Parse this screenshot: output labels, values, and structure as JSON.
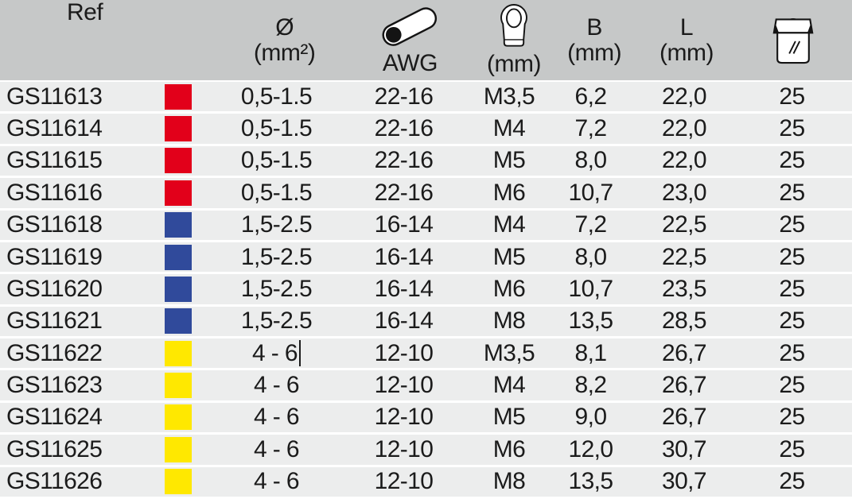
{
  "colors": {
    "header_bg": "#c6c8c8",
    "row_bg": "#eceded",
    "separator": "#ffffff",
    "text": "#1b1b1b",
    "red": "#e2001a",
    "blue": "#304a9b",
    "yellow": "#ffe800"
  },
  "table": {
    "column_keys": [
      "ref",
      "color",
      "diameter",
      "awg",
      "stud",
      "b",
      "l",
      "qty"
    ],
    "columns": [
      {
        "key": "ref",
        "label": "Ref"
      },
      {
        "key": "color",
        "label": ""
      },
      {
        "key": "diameter",
        "label": "Ø",
        "sublabel": "(mm²)"
      },
      {
        "key": "awg",
        "label": "AWG",
        "icon": "wire-icon"
      },
      {
        "key": "stud",
        "label": "(mm)",
        "icon": "ring-terminal-icon"
      },
      {
        "key": "b",
        "label": "B",
        "sublabel": "(mm)"
      },
      {
        "key": "l",
        "label": "L",
        "sublabel": "(mm)"
      },
      {
        "key": "qty",
        "label": "",
        "icon": "package-icon"
      }
    ],
    "rows": [
      {
        "ref": "GS11613",
        "color": "red",
        "diameter": "0,5-1.5",
        "awg": "22-16",
        "stud": "M3,5",
        "b": "6,2",
        "l": "22,0",
        "qty": "25"
      },
      {
        "ref": "GS11614",
        "color": "red",
        "diameter": "0,5-1.5",
        "awg": "22-16",
        "stud": "M4",
        "b": "7,2",
        "l": "22,0",
        "qty": "25"
      },
      {
        "ref": "GS11615",
        "color": "red",
        "diameter": "0,5-1.5",
        "awg": "22-16",
        "stud": "M5",
        "b": "8,0",
        "l": "22,0",
        "qty": "25"
      },
      {
        "ref": "GS11616",
        "color": "red",
        "diameter": "0,5-1.5",
        "awg": "22-16",
        "stud": "M6",
        "b": "10,7",
        "l": "23,0",
        "qty": "25"
      },
      {
        "ref": "GS11618",
        "color": "blue",
        "diameter": "1,5-2.5",
        "awg": "16-14",
        "stud": "M4",
        "b": "7,2",
        "l": "22,5",
        "qty": "25"
      },
      {
        "ref": "GS11619",
        "color": "blue",
        "diameter": "1,5-2.5",
        "awg": "16-14",
        "stud": "M5",
        "b": "8,0",
        "l": "22,5",
        "qty": "25"
      },
      {
        "ref": "GS11620",
        "color": "blue",
        "diameter": "1,5-2.5",
        "awg": "16-14",
        "stud": "M6",
        "b": "10,7",
        "l": "23,5",
        "qty": "25"
      },
      {
        "ref": "GS11621",
        "color": "blue",
        "diameter": "1,5-2.5",
        "awg": "16-14",
        "stud": "M8",
        "b": "13,5",
        "l": "28,5",
        "qty": "25"
      },
      {
        "ref": "GS11622",
        "color": "yellow",
        "diameter": "4 - 6",
        "awg": "12-10",
        "stud": "M3,5",
        "b": "8,1",
        "l": "26,7",
        "qty": "25",
        "caret": true
      },
      {
        "ref": "GS11623",
        "color": "yellow",
        "diameter": "4 - 6",
        "awg": "12-10",
        "stud": "M4",
        "b": "8,2",
        "l": "26,7",
        "qty": "25"
      },
      {
        "ref": "GS11624",
        "color": "yellow",
        "diameter": "4 - 6",
        "awg": "12-10",
        "stud": "M5",
        "b": "9,0",
        "l": "26,7",
        "qty": "25"
      },
      {
        "ref": "GS11625",
        "color": "yellow",
        "diameter": "4 - 6",
        "awg": "12-10",
        "stud": "M6",
        "b": "12,0",
        "l": "30,7",
        "qty": "25"
      },
      {
        "ref": "GS11626",
        "color": "yellow",
        "diameter": "4 - 6",
        "awg": "12-10",
        "stud": "M8",
        "b": "13,5",
        "l": "30,7",
        "qty": "25"
      }
    ]
  }
}
